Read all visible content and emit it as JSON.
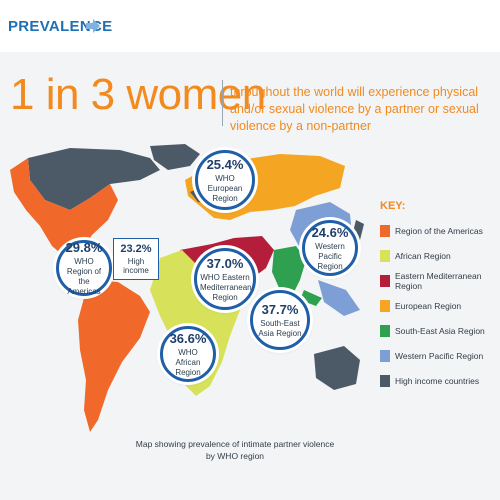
{
  "header": {
    "title": "PREVALENCE"
  },
  "headline": "1 in 3 women",
  "subhead": "throughout the world will experience physical and/or sexual violence by a partner or sexual violence by a non-partner",
  "bubbles": [
    {
      "pct": "25.4%",
      "label": "WHO European Region"
    },
    {
      "pct": "29.8%",
      "label": "WHO Region of the Americas"
    },
    {
      "pct": "37.0%",
      "label": "WHO Eastern Mediterranean Region"
    },
    {
      "pct": "24.6%",
      "label": "Western Pacific Region"
    },
    {
      "pct": "37.7%",
      "label": "South-East Asia Region"
    },
    {
      "pct": "36.6%",
      "label": "WHO African Region"
    }
  ],
  "high_income": {
    "pct": "23.2%",
    "label": "High income"
  },
  "caption": "Map showing prevalence of intimate partner violence by WHO region",
  "key": {
    "title": "KEY:",
    "items": [
      {
        "label": "Region of the Americas",
        "color": "#f0692a"
      },
      {
        "label": "African Region",
        "color": "#d7e25a"
      },
      {
        "label": "Eastern Mediterranean Region",
        "color": "#b51e3b"
      },
      {
        "label": "European Region",
        "color": "#f4a623"
      },
      {
        "label": "South-East Asia Region",
        "color": "#2ea04f"
      },
      {
        "label": "Western Pacific Region",
        "color": "#7e9fd6"
      },
      {
        "label": "High income countries",
        "color": "#4c5a68"
      }
    ]
  }
}
